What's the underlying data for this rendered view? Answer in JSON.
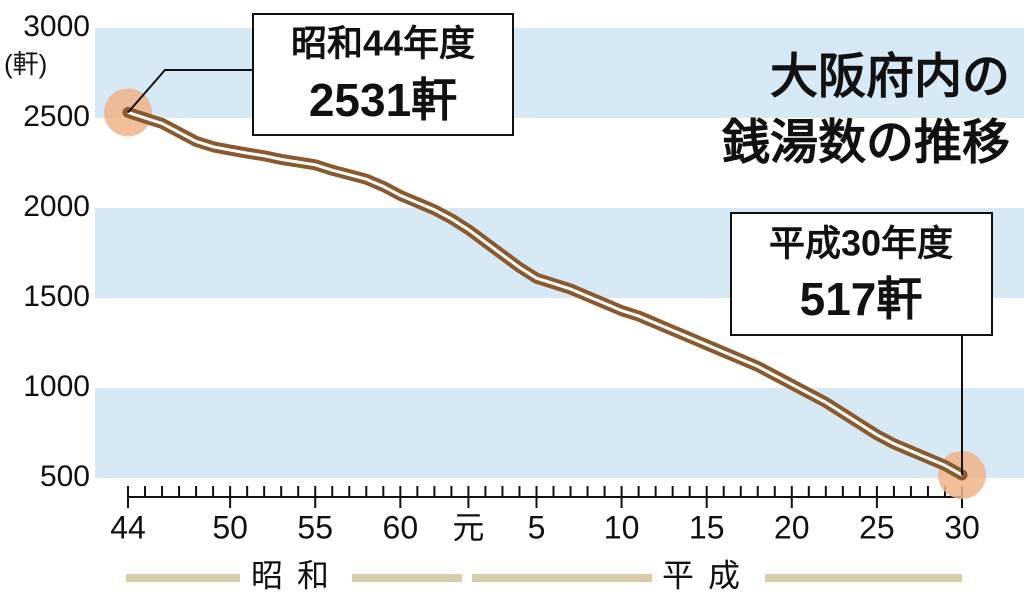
{
  "chart_data": {
    "type": "line",
    "title_lines": [
      "大阪府内の",
      "銭湯数の推移"
    ],
    "y_unit": "(軒)",
    "categories": [
      "44",
      null,
      null,
      null,
      null,
      null,
      "50",
      null,
      null,
      null,
      null,
      "55",
      null,
      null,
      null,
      null,
      "60",
      null,
      null,
      null,
      "元",
      null,
      null,
      null,
      "5",
      null,
      null,
      null,
      null,
      "10",
      null,
      null,
      null,
      null,
      "15",
      null,
      null,
      null,
      null,
      "20",
      null,
      null,
      null,
      null,
      "25",
      null,
      null,
      null,
      null,
      "30"
    ],
    "eras": [
      "昭和",
      "平成"
    ],
    "series": [
      {
        "name": null,
        "color": "#8a5a2e",
        "values": [
          2531,
          2500,
          2470,
          2420,
          2370,
          2340,
          2322,
          2305,
          2290,
          2270,
          2255,
          2240,
          2210,
          2185,
          2160,
          2120,
          2070,
          2030,
          1990,
          1940,
          1880,
          1810,
          1740,
          1670,
          1610,
          1580,
          1550,
          1510,
          1470,
          1430,
          1400,
          1360,
          1320,
          1280,
          1240,
          1200,
          1160,
          1120,
          1070,
          1020,
          970,
          920,
          860,
          800,
          740,
          690,
          650,
          610,
          570,
          517
        ],
        "value_labels": [
          "2531軒",
          null,
          null,
          null,
          null,
          null,
          null,
          null,
          null,
          null,
          null,
          null,
          null,
          null,
          null,
          null,
          null,
          null,
          null,
          null,
          null,
          null,
          null,
          null,
          null,
          null,
          null,
          null,
          null,
          null,
          null,
          null,
          null,
          null,
          null,
          null,
          null,
          null,
          null,
          null,
          null,
          null,
          null,
          null,
          null,
          null,
          null,
          null,
          null,
          "517軒"
        ]
      }
    ],
    "annotations": [
      "昭和44年度",
      "平成30年度"
    ],
    "ylim": [
      500,
      3000
    ],
    "yticks": [
      500,
      1000,
      1500,
      2000,
      2500,
      3000
    ],
    "band_color": "#d7e9f5"
  }
}
